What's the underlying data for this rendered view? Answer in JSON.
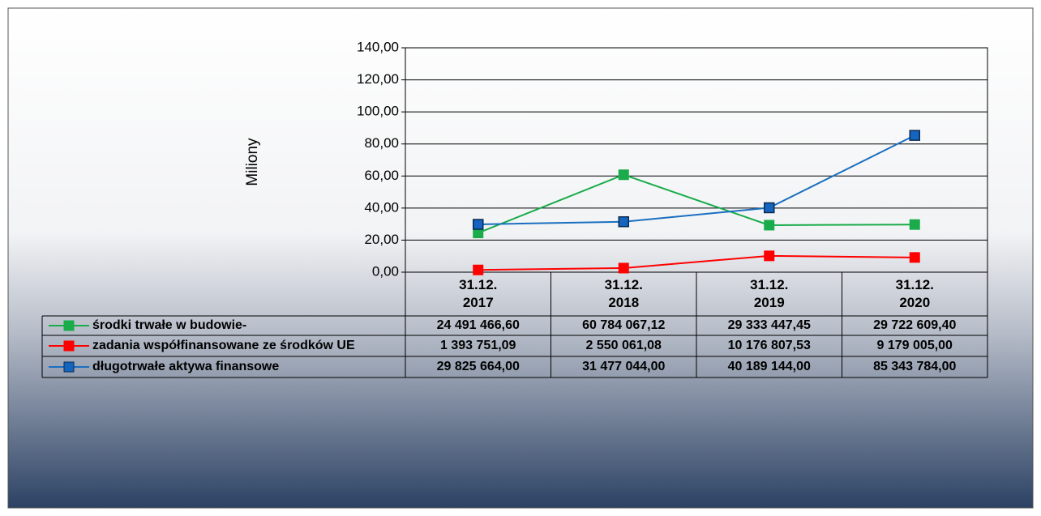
{
  "chart_data": {
    "type": "line",
    "y_label": "Miliony",
    "categories": [
      "31.12. 2017",
      "31.12. 2018",
      "31.12. 2019",
      "31.12. 2020"
    ],
    "series": [
      {
        "name": "środki trwałe w budowie-",
        "color": "#1aab4a",
        "marker_color": "#1aab4a",
        "values": [
          24.4914666,
          60.78406712,
          29.33344745,
          29.7226094
        ],
        "value_labels": [
          "24 491 466,60",
          "60 784 067,12",
          "29 333 447,45",
          "29 722 609,40"
        ]
      },
      {
        "name": "zadania współfinansowane ze środków UE",
        "color": "#ff0000",
        "marker_color": "#ff0000",
        "values": [
          1.39375109,
          2.55006108,
          10.17680753,
          9.179005
        ],
        "value_labels": [
          "1 393 751,09",
          "2 550 061,08",
          "10 176 807,53",
          "9 179 005,00"
        ]
      },
      {
        "name": "długotrwałe aktywa finansowe",
        "color": "#1a6fc0",
        "marker_color": "#1565c0",
        "values": [
          29.825664,
          31.477044,
          40.189144,
          85.343784
        ],
        "value_labels": [
          "29 825 664,00",
          "31 477 044,00",
          "40 189 144,00",
          "85 343 784,00"
        ]
      }
    ],
    "ylim": [
      0,
      140
    ],
    "yticks": [
      {
        "value": 0,
        "label": "0,00"
      },
      {
        "value": 20,
        "label": "20,00"
      },
      {
        "value": 40,
        "label": "40,00"
      },
      {
        "value": 60,
        "label": "60,00"
      },
      {
        "value": 80,
        "label": "80,00"
      },
      {
        "value": 100,
        "label": "100,00"
      },
      {
        "value": 120,
        "label": "120,00"
      },
      {
        "value": 140,
        "label": "140,00"
      }
    ],
    "grid": true
  }
}
